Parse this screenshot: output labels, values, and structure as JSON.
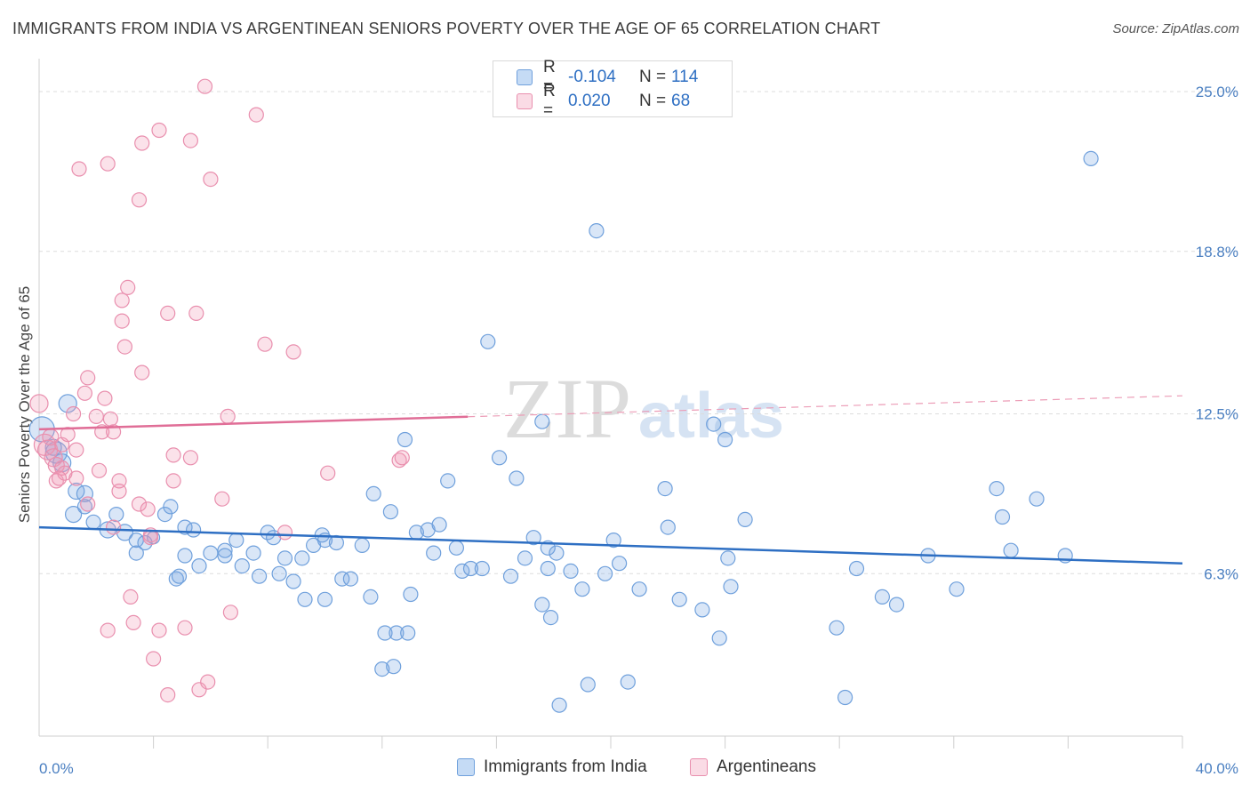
{
  "title": "IMMIGRANTS FROM INDIA VS ARGENTINEAN SENIORS POVERTY OVER THE AGE OF 65 CORRELATION CHART",
  "source": "Source: ZipAtlas.com",
  "watermark": {
    "part1": "ZIP",
    "part2": "atlas"
  },
  "legend": {
    "r_label": "R =",
    "n_label": "N =",
    "rows": [
      {
        "r": "-0.104",
        "n": "114",
        "color": "#a8c8ef",
        "border": "#6fa0dc"
      },
      {
        "r": "0.020",
        "n": "68",
        "color": "#f6bfd0",
        "border": "#e98fae"
      }
    ]
  },
  "bottom_legend": [
    {
      "label": "Immigrants from India",
      "color": "#c5dbf5",
      "border": "#6fa0dc"
    },
    {
      "label": "Argentineans",
      "color": "#fadbe5",
      "border": "#e98fae"
    }
  ],
  "chart_data": {
    "type": "scatter",
    "title": "IMMIGRANTS FROM INDIA VS ARGENTINEAN SENIORS POVERTY OVER THE AGE OF 65 CORRELATION CHART",
    "xlabel": "",
    "ylabel": "Seniors Poverty Over the Age of 65",
    "xlim": [
      0,
      40
    ],
    "ylim": [
      0,
      26
    ],
    "x_tick_labels": [
      "0.0%",
      "40.0%"
    ],
    "y_ticks": [
      6.3,
      12.5,
      18.8,
      25.0
    ],
    "y_tick_labels": [
      "6.3%",
      "12.5%",
      "18.8%",
      "25.0%"
    ],
    "grid": "horizontal dashed",
    "legend_position": "top-center",
    "series": [
      {
        "name": "Immigrants from India",
        "color": "#6fa0dc",
        "fill": "rgba(120,165,225,0.28)",
        "trend": {
          "x": [
            0,
            40
          ],
          "y": [
            8.1,
            6.7
          ],
          "color": "#2e6fc3",
          "dashed_after": null
        },
        "points": [
          [
            0.1,
            11.9,
            14
          ],
          [
            1.0,
            12.9,
            10
          ],
          [
            0.6,
            11.0,
            12
          ],
          [
            0.8,
            10.6,
            10
          ],
          [
            0.5,
            11.2,
            9
          ],
          [
            1.3,
            9.5,
            9
          ],
          [
            1.6,
            9.4,
            9
          ],
          [
            1.2,
            8.6,
            9
          ],
          [
            1.6,
            8.9,
            8
          ],
          [
            1.9,
            8.3,
            8
          ],
          [
            2.4,
            8.0,
            9
          ],
          [
            2.7,
            8.6,
            8
          ],
          [
            3.0,
            7.9,
            9
          ],
          [
            3.4,
            7.6,
            8
          ],
          [
            3.7,
            7.5,
            8
          ],
          [
            3.4,
            7.1,
            8
          ],
          [
            4.0,
            7.7,
            7
          ],
          [
            4.4,
            8.6,
            8
          ],
          [
            4.6,
            8.9,
            8
          ],
          [
            5.1,
            8.1,
            8
          ],
          [
            5.4,
            8.0,
            8
          ],
          [
            5.1,
            7.0,
            8
          ],
          [
            5.6,
            6.6,
            8
          ],
          [
            4.8,
            6.1,
            8
          ],
          [
            4.9,
            6.2,
            8
          ],
          [
            6.0,
            7.1,
            8
          ],
          [
            6.5,
            7.2,
            8
          ],
          [
            6.9,
            7.6,
            8
          ],
          [
            6.5,
            7.0,
            8
          ],
          [
            7.1,
            6.6,
            8
          ],
          [
            7.5,
            7.1,
            8
          ],
          [
            7.7,
            6.2,
            8
          ],
          [
            8.0,
            7.9,
            8
          ],
          [
            8.2,
            7.7,
            8
          ],
          [
            8.4,
            6.3,
            8
          ],
          [
            8.6,
            6.9,
            8
          ],
          [
            8.9,
            6.0,
            8
          ],
          [
            9.2,
            6.9,
            8
          ],
          [
            9.6,
            7.4,
            8
          ],
          [
            9.9,
            7.8,
            8
          ],
          [
            10.0,
            7.6,
            8
          ],
          [
            10.4,
            7.5,
            8
          ],
          [
            10.6,
            6.1,
            8
          ],
          [
            10.9,
            6.1,
            8
          ],
          [
            11.3,
            7.4,
            8
          ],
          [
            11.7,
            9.4,
            8
          ],
          [
            9.3,
            5.3,
            8
          ],
          [
            10.0,
            5.3,
            8
          ],
          [
            11.6,
            5.4,
            8
          ],
          [
            12.3,
            8.7,
            8
          ],
          [
            12.8,
            11.5,
            8
          ],
          [
            13.2,
            7.9,
            8
          ],
          [
            13.6,
            8.0,
            8
          ],
          [
            13.8,
            7.1,
            8
          ],
          [
            14.0,
            8.2,
            8
          ],
          [
            14.3,
            9.9,
            8
          ],
          [
            14.6,
            7.3,
            8
          ],
          [
            14.8,
            6.4,
            8
          ],
          [
            15.1,
            6.5,
            8
          ],
          [
            15.5,
            6.5,
            8
          ],
          [
            12.1,
            4.0,
            8
          ],
          [
            12.5,
            4.0,
            8
          ],
          [
            12.9,
            4.0,
            8
          ],
          [
            13.0,
            5.5,
            8
          ],
          [
            12.0,
            2.6,
            8
          ],
          [
            12.4,
            2.7,
            8
          ],
          [
            15.7,
            15.3,
            8
          ],
          [
            16.1,
            10.8,
            8
          ],
          [
            16.5,
            6.2,
            8
          ],
          [
            16.7,
            10.0,
            8
          ],
          [
            17.0,
            6.9,
            8
          ],
          [
            17.3,
            7.7,
            8
          ],
          [
            17.6,
            12.2,
            8
          ],
          [
            17.6,
            5.1,
            8
          ],
          [
            17.8,
            6.5,
            8
          ],
          [
            17.8,
            7.3,
            8
          ],
          [
            17.9,
            4.6,
            8
          ],
          [
            18.1,
            7.1,
            8
          ],
          [
            18.2,
            1.2,
            8
          ],
          [
            18.6,
            6.4,
            8
          ],
          [
            19.0,
            5.7,
            8
          ],
          [
            19.2,
            2.0,
            8
          ],
          [
            19.8,
            6.3,
            8
          ],
          [
            20.1,
            7.6,
            8
          ],
          [
            20.3,
            6.7,
            8
          ],
          [
            20.6,
            2.1,
            8
          ],
          [
            21.0,
            5.7,
            8
          ],
          [
            21.9,
            9.6,
            8
          ],
          [
            22.0,
            8.1,
            8
          ],
          [
            22.4,
            5.3,
            8
          ],
          [
            23.2,
            4.9,
            8
          ],
          [
            23.6,
            12.1,
            8
          ],
          [
            23.8,
            3.8,
            8
          ],
          [
            24.0,
            11.5,
            8
          ],
          [
            24.1,
            6.9,
            8
          ],
          [
            24.2,
            5.8,
            8
          ],
          [
            24.7,
            8.4,
            8
          ],
          [
            19.5,
            19.6,
            8
          ],
          [
            27.9,
            4.2,
            8
          ],
          [
            28.6,
            6.5,
            8
          ],
          [
            28.2,
            1.5,
            8
          ],
          [
            29.5,
            5.4,
            8
          ],
          [
            30.0,
            5.1,
            8
          ],
          [
            31.1,
            7.0,
            8
          ],
          [
            32.1,
            5.7,
            8
          ],
          [
            33.5,
            9.6,
            8
          ],
          [
            33.7,
            8.5,
            8
          ],
          [
            34.0,
            7.2,
            8
          ],
          [
            34.9,
            9.2,
            8
          ],
          [
            35.9,
            7.0,
            8
          ],
          [
            36.8,
            22.4,
            8
          ]
        ]
      },
      {
        "name": "Argentineans",
        "color": "#e98fae",
        "fill": "rgba(240,150,180,0.28)",
        "trend": {
          "x": [
            0,
            40
          ],
          "y": [
            11.9,
            13.2
          ],
          "color": "#e06e97",
          "dashed_after": 15.0
        },
        "points": [
          [
            0.0,
            12.9,
            10
          ],
          [
            0.2,
            11.3,
            12
          ],
          [
            0.3,
            11.1,
            11
          ],
          [
            0.5,
            10.8,
            10
          ],
          [
            0.4,
            11.6,
            9
          ],
          [
            0.6,
            10.5,
            9
          ],
          [
            0.6,
            9.9,
            8
          ],
          [
            0.8,
            10.4,
            8
          ],
          [
            0.8,
            11.3,
            8
          ],
          [
            0.9,
            10.2,
            8
          ],
          [
            0.7,
            10.0,
            8
          ],
          [
            1.0,
            11.7,
            8
          ],
          [
            1.2,
            12.5,
            8
          ],
          [
            1.3,
            11.1,
            8
          ],
          [
            1.3,
            10.0,
            8
          ],
          [
            1.6,
            13.3,
            8
          ],
          [
            1.7,
            13.9,
            8
          ],
          [
            1.7,
            9.0,
            8
          ],
          [
            2.0,
            12.4,
            8
          ],
          [
            2.1,
            10.3,
            8
          ],
          [
            2.2,
            11.8,
            8
          ],
          [
            2.3,
            13.1,
            8
          ],
          [
            2.5,
            12.3,
            8
          ],
          [
            2.6,
            11.8,
            8
          ],
          [
            2.6,
            8.1,
            8
          ],
          [
            2.8,
            9.5,
            8
          ],
          [
            2.8,
            9.9,
            8
          ],
          [
            2.9,
            16.1,
            8
          ],
          [
            2.9,
            16.9,
            8
          ],
          [
            3.0,
            15.1,
            8
          ],
          [
            3.1,
            17.4,
            8
          ],
          [
            3.2,
            5.4,
            8
          ],
          [
            3.3,
            4.4,
            8
          ],
          [
            3.5,
            9.0,
            8
          ],
          [
            3.6,
            14.1,
            8
          ],
          [
            3.8,
            8.8,
            8
          ],
          [
            3.9,
            7.8,
            8
          ],
          [
            4.0,
            3.0,
            8
          ],
          [
            4.2,
            4.1,
            8
          ],
          [
            4.5,
            16.4,
            8
          ],
          [
            4.7,
            9.9,
            8
          ],
          [
            4.7,
            10.9,
            8
          ],
          [
            5.1,
            4.2,
            8
          ],
          [
            5.3,
            10.8,
            8
          ],
          [
            5.5,
            16.4,
            8
          ],
          [
            5.6,
            1.8,
            8
          ],
          [
            5.9,
            2.1,
            8
          ],
          [
            6.0,
            21.6,
            8
          ],
          [
            6.4,
            9.2,
            8
          ],
          [
            6.7,
            4.8,
            8
          ],
          [
            6.6,
            12.4,
            8
          ],
          [
            7.9,
            15.2,
            8
          ],
          [
            8.6,
            7.9,
            8
          ],
          [
            8.9,
            14.9,
            8
          ],
          [
            10.1,
            10.2,
            8
          ],
          [
            12.6,
            10.7,
            8
          ],
          [
            12.7,
            10.8,
            8
          ],
          [
            2.4,
            22.2,
            8
          ],
          [
            1.4,
            22.0,
            8
          ],
          [
            3.5,
            20.8,
            8
          ],
          [
            3.6,
            23.0,
            8
          ],
          [
            4.2,
            23.5,
            8
          ],
          [
            5.3,
            23.1,
            8
          ],
          [
            5.8,
            25.2,
            8
          ],
          [
            7.6,
            24.1,
            8
          ],
          [
            4.5,
            1.6,
            8
          ],
          [
            2.4,
            4.1,
            8
          ],
          [
            3.9,
            7.7,
            8
          ]
        ]
      }
    ]
  }
}
